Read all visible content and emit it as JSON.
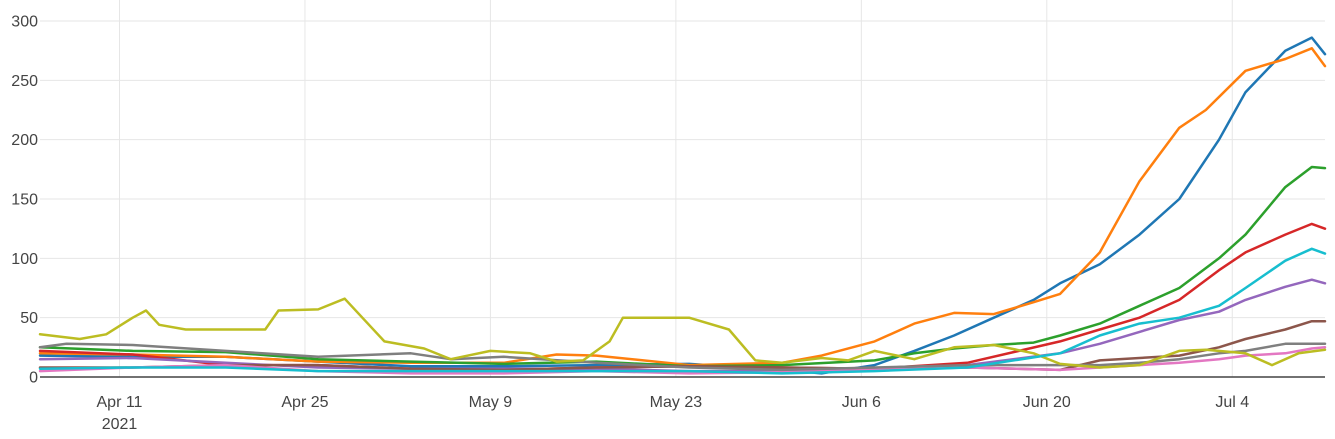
{
  "chart_data": {
    "type": "line",
    "title": "",
    "xlabel": "",
    "ylabel": "",
    "ylim": [
      0,
      300
    ],
    "xlim": [
      "2021-04-05",
      "2021-07-11"
    ],
    "grid": true,
    "legend": "none",
    "yticks": [
      "0",
      "50",
      "100",
      "150",
      "200",
      "250",
      "300"
    ],
    "xticks": [
      {
        "date": "2021-04-11",
        "label": "Apr 11",
        "sublabel": "2021"
      },
      {
        "date": "2021-04-25",
        "label": "Apr 25",
        "sublabel": ""
      },
      {
        "date": "2021-05-09",
        "label": "May 9",
        "sublabel": ""
      },
      {
        "date": "2021-05-23",
        "label": "May 23",
        "sublabel": ""
      },
      {
        "date": "2021-06-06",
        "label": "Jun 6",
        "sublabel": ""
      },
      {
        "date": "2021-06-20",
        "label": "Jun 20",
        "sublabel": ""
      },
      {
        "date": "2021-07-04",
        "label": "Jul 4",
        "sublabel": ""
      }
    ],
    "series": [
      {
        "color": "#1f77b4",
        "points": [
          [
            "2021-04-05",
            18
          ],
          [
            "2021-04-12",
            17
          ],
          [
            "2021-04-19",
            17
          ],
          [
            "2021-04-26",
            13
          ],
          [
            "2021-05-03",
            9
          ],
          [
            "2021-05-10",
            9
          ],
          [
            "2021-05-17",
            10
          ],
          [
            "2021-05-24",
            11
          ],
          [
            "2021-05-31",
            6
          ],
          [
            "2021-06-03",
            3
          ],
          [
            "2021-06-07",
            10
          ],
          [
            "2021-06-10",
            22
          ],
          [
            "2021-06-13",
            35
          ],
          [
            "2021-06-16",
            50
          ],
          [
            "2021-06-19",
            65
          ],
          [
            "2021-06-21",
            79
          ],
          [
            "2021-06-24",
            95
          ],
          [
            "2021-06-27",
            120
          ],
          [
            "2021-06-30",
            150
          ],
          [
            "2021-07-03",
            200
          ],
          [
            "2021-07-05",
            240
          ],
          [
            "2021-07-08",
            275
          ],
          [
            "2021-07-10",
            286
          ],
          [
            "2021-07-11",
            272
          ]
        ]
      },
      {
        "color": "#ff7f0e",
        "points": [
          [
            "2021-04-05",
            20
          ],
          [
            "2021-04-12",
            19
          ],
          [
            "2021-04-19",
            17
          ],
          [
            "2021-04-26",
            13
          ],
          [
            "2021-05-03",
            12
          ],
          [
            "2021-05-10",
            12
          ],
          [
            "2021-05-14",
            19
          ],
          [
            "2021-05-17",
            18
          ],
          [
            "2021-05-24",
            10
          ],
          [
            "2021-05-31",
            12
          ],
          [
            "2021-06-03",
            18
          ],
          [
            "2021-06-07",
            30
          ],
          [
            "2021-06-10",
            45
          ],
          [
            "2021-06-13",
            54
          ],
          [
            "2021-06-16",
            53
          ],
          [
            "2021-06-19",
            63
          ],
          [
            "2021-06-21",
            70
          ],
          [
            "2021-06-24",
            105
          ],
          [
            "2021-06-27",
            165
          ],
          [
            "2021-06-30",
            210
          ],
          [
            "2021-07-02",
            225
          ],
          [
            "2021-07-05",
            258
          ],
          [
            "2021-07-08",
            268
          ],
          [
            "2021-07-10",
            277
          ],
          [
            "2021-07-11",
            262
          ]
        ]
      },
      {
        "color": "#2ca02c",
        "points": [
          [
            "2021-04-05",
            25
          ],
          [
            "2021-04-12",
            22
          ],
          [
            "2021-04-19",
            21
          ],
          [
            "2021-04-26",
            15
          ],
          [
            "2021-05-03",
            13
          ],
          [
            "2021-05-10",
            11
          ],
          [
            "2021-05-17",
            13
          ],
          [
            "2021-05-24",
            9
          ],
          [
            "2021-05-31",
            10
          ],
          [
            "2021-06-07",
            14
          ],
          [
            "2021-06-10",
            20
          ],
          [
            "2021-06-13",
            24
          ],
          [
            "2021-06-16",
            27
          ],
          [
            "2021-06-19",
            29
          ],
          [
            "2021-06-21",
            35
          ],
          [
            "2021-06-24",
            45
          ],
          [
            "2021-06-27",
            60
          ],
          [
            "2021-06-30",
            75
          ],
          [
            "2021-07-03",
            100
          ],
          [
            "2021-07-05",
            120
          ],
          [
            "2021-07-08",
            160
          ],
          [
            "2021-07-10",
            177
          ],
          [
            "2021-07-11",
            176
          ]
        ]
      },
      {
        "color": "#d62728",
        "points": [
          [
            "2021-04-05",
            22
          ],
          [
            "2021-04-12",
            19
          ],
          [
            "2021-04-19",
            10
          ],
          [
            "2021-04-26",
            10
          ],
          [
            "2021-05-03",
            7
          ],
          [
            "2021-05-10",
            6
          ],
          [
            "2021-05-17",
            8
          ],
          [
            "2021-05-24",
            9
          ],
          [
            "2021-05-31",
            8
          ],
          [
            "2021-06-07",
            7
          ],
          [
            "2021-06-14",
            12
          ],
          [
            "2021-06-21",
            30
          ],
          [
            "2021-06-24",
            40
          ],
          [
            "2021-06-27",
            50
          ],
          [
            "2021-06-30",
            65
          ],
          [
            "2021-07-03",
            90
          ],
          [
            "2021-07-05",
            105
          ],
          [
            "2021-07-08",
            120
          ],
          [
            "2021-07-10",
            129
          ],
          [
            "2021-07-11",
            125
          ]
        ]
      },
      {
        "color": "#9467bd",
        "points": [
          [
            "2021-04-05",
            15
          ],
          [
            "2021-04-12",
            16
          ],
          [
            "2021-04-19",
            12
          ],
          [
            "2021-04-26",
            8
          ],
          [
            "2021-05-03",
            7
          ],
          [
            "2021-05-10",
            7
          ],
          [
            "2021-05-17",
            7
          ],
          [
            "2021-05-24",
            5
          ],
          [
            "2021-05-31",
            5
          ],
          [
            "2021-06-07",
            6
          ],
          [
            "2021-06-14",
            10
          ],
          [
            "2021-06-21",
            20
          ],
          [
            "2021-06-24",
            28
          ],
          [
            "2021-06-27",
            38
          ],
          [
            "2021-06-30",
            48
          ],
          [
            "2021-07-03",
            55
          ],
          [
            "2021-07-05",
            65
          ],
          [
            "2021-07-08",
            76
          ],
          [
            "2021-07-10",
            82
          ],
          [
            "2021-07-11",
            79
          ]
        ]
      },
      {
        "color": "#8c564b",
        "points": [
          [
            "2021-04-05",
            8
          ],
          [
            "2021-04-12",
            8
          ],
          [
            "2021-04-19",
            10
          ],
          [
            "2021-04-26",
            10
          ],
          [
            "2021-05-03",
            7
          ],
          [
            "2021-05-10",
            6
          ],
          [
            "2021-05-17",
            8
          ],
          [
            "2021-05-24",
            9
          ],
          [
            "2021-05-31",
            8
          ],
          [
            "2021-06-07",
            7
          ],
          [
            "2021-06-14",
            8
          ],
          [
            "2021-06-21",
            6
          ],
          [
            "2021-06-24",
            14
          ],
          [
            "2021-06-27",
            16
          ],
          [
            "2021-06-30",
            18
          ],
          [
            "2021-07-03",
            25
          ],
          [
            "2021-07-05",
            32
          ],
          [
            "2021-07-08",
            40
          ],
          [
            "2021-07-10",
            47
          ],
          [
            "2021-07-11",
            47
          ]
        ]
      },
      {
        "color": "#e377c2",
        "points": [
          [
            "2021-04-05",
            5
          ],
          [
            "2021-04-12",
            8
          ],
          [
            "2021-04-19",
            10
          ],
          [
            "2021-04-26",
            5
          ],
          [
            "2021-05-03",
            3
          ],
          [
            "2021-05-10",
            3
          ],
          [
            "2021-05-17",
            5
          ],
          [
            "2021-05-24",
            3
          ],
          [
            "2021-05-31",
            4
          ],
          [
            "2021-06-07",
            6
          ],
          [
            "2021-06-14",
            8
          ],
          [
            "2021-06-21",
            6
          ],
          [
            "2021-06-24",
            8
          ],
          [
            "2021-06-27",
            10
          ],
          [
            "2021-06-30",
            12
          ],
          [
            "2021-07-03",
            15
          ],
          [
            "2021-07-05",
            18
          ],
          [
            "2021-07-08",
            20
          ],
          [
            "2021-07-10",
            24
          ],
          [
            "2021-07-11",
            25
          ]
        ]
      },
      {
        "color": "#7f7f7f",
        "points": [
          [
            "2021-04-05",
            25
          ],
          [
            "2021-04-07",
            28
          ],
          [
            "2021-04-12",
            27
          ],
          [
            "2021-04-19",
            22
          ],
          [
            "2021-04-26",
            17
          ],
          [
            "2021-05-03",
            20
          ],
          [
            "2021-05-06",
            15
          ],
          [
            "2021-05-10",
            17
          ],
          [
            "2021-05-17",
            12
          ],
          [
            "2021-05-24",
            8
          ],
          [
            "2021-05-31",
            6
          ],
          [
            "2021-06-07",
            8
          ],
          [
            "2021-06-14",
            10
          ],
          [
            "2021-06-21",
            10
          ],
          [
            "2021-06-24",
            10
          ],
          [
            "2021-06-27",
            12
          ],
          [
            "2021-06-30",
            15
          ],
          [
            "2021-07-03",
            20
          ],
          [
            "2021-07-05",
            22
          ],
          [
            "2021-07-08",
            28
          ],
          [
            "2021-07-11",
            28
          ]
        ]
      },
      {
        "color": "#bcbd22",
        "points": [
          [
            "2021-04-05",
            36
          ],
          [
            "2021-04-08",
            32
          ],
          [
            "2021-04-10",
            36
          ],
          [
            "2021-04-12",
            50
          ],
          [
            "2021-04-13",
            56
          ],
          [
            "2021-04-14",
            44
          ],
          [
            "2021-04-16",
            40
          ],
          [
            "2021-04-22",
            40
          ],
          [
            "2021-04-23",
            56
          ],
          [
            "2021-04-26",
            57
          ],
          [
            "2021-04-28",
            66
          ],
          [
            "2021-04-30",
            42
          ],
          [
            "2021-05-01",
            30
          ],
          [
            "2021-05-04",
            24
          ],
          [
            "2021-05-06",
            15
          ],
          [
            "2021-05-09",
            22
          ],
          [
            "2021-05-12",
            20
          ],
          [
            "2021-05-14",
            13
          ],
          [
            "2021-05-16",
            14
          ],
          [
            "2021-05-18",
            30
          ],
          [
            "2021-05-19",
            50
          ],
          [
            "2021-05-24",
            50
          ],
          [
            "2021-05-27",
            40
          ],
          [
            "2021-05-29",
            14
          ],
          [
            "2021-05-31",
            12
          ],
          [
            "2021-06-03",
            16
          ],
          [
            "2021-06-05",
            14
          ],
          [
            "2021-06-07",
            22
          ],
          [
            "2021-06-10",
            15
          ],
          [
            "2021-06-13",
            25
          ],
          [
            "2021-06-16",
            27
          ],
          [
            "2021-06-19",
            20
          ],
          [
            "2021-06-21",
            11
          ],
          [
            "2021-06-24",
            8
          ],
          [
            "2021-06-27",
            10
          ],
          [
            "2021-06-30",
            22
          ],
          [
            "2021-07-02",
            23
          ],
          [
            "2021-07-05",
            20
          ],
          [
            "2021-07-07",
            10
          ],
          [
            "2021-07-09",
            20
          ],
          [
            "2021-07-11",
            23
          ]
        ]
      },
      {
        "color": "#17becf",
        "points": [
          [
            "2021-04-05",
            7
          ],
          [
            "2021-04-12",
            8
          ],
          [
            "2021-04-19",
            8
          ],
          [
            "2021-04-26",
            5
          ],
          [
            "2021-05-03",
            5
          ],
          [
            "2021-05-10",
            5
          ],
          [
            "2021-05-17",
            5
          ],
          [
            "2021-05-24",
            5
          ],
          [
            "2021-05-31",
            3
          ],
          [
            "2021-06-07",
            5
          ],
          [
            "2021-06-14",
            8
          ],
          [
            "2021-06-21",
            20
          ],
          [
            "2021-06-24",
            35
          ],
          [
            "2021-06-27",
            45
          ],
          [
            "2021-06-30",
            50
          ],
          [
            "2021-07-03",
            60
          ],
          [
            "2021-07-05",
            75
          ],
          [
            "2021-07-08",
            98
          ],
          [
            "2021-07-10",
            108
          ],
          [
            "2021-07-11",
            104
          ]
        ]
      }
    ]
  }
}
